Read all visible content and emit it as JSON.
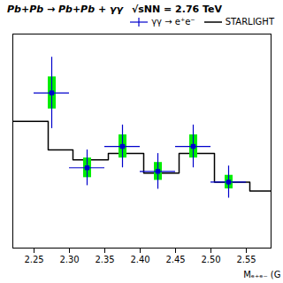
{
  "chart_data": {
    "type": "histogram",
    "title": "Pb+Pb → Pb+Pb + γγ",
    "subtitle": "√sNN = 2.76 TeV",
    "x_label": "Mₑ₊ₑ₋ (G",
    "xlim": [
      2.22,
      2.585
    ],
    "ylim": [
      -0.15,
      1.05
    ],
    "xticks": [
      2.25,
      {
        "value": 2.3,
        "label": "2.30"
      },
      2.35,
      {
        "value": 2.4,
        "label": "2.40"
      },
      2.45,
      {
        "value": 2.5,
        "label": "2.50"
      },
      2.55
    ],
    "yticks": [],
    "tick_labels": "x",
    "grid": false,
    "legend": "upper right",
    "series": [
      {
        "name": "γγ → e⁺e⁻",
        "type": "errorbar",
        "color": "#0000cc",
        "marker": "square",
        "x": [
          2.275,
          2.325,
          2.375,
          2.425,
          2.475,
          2.525
        ],
        "values": [
          0.72,
          0.3,
          0.42,
          0.28,
          0.42,
          0.22
        ],
        "xerr": [
          0.025,
          0.025,
          0.025,
          0.025,
          0.025,
          0.025
        ],
        "yerr_stat": [
          0.2,
          0.1,
          0.12,
          0.1,
          0.12,
          0.09
        ],
        "yerr_syst_lo": [
          0.09,
          0.055,
          0.065,
          0.05,
          0.065,
          0.038
        ],
        "yerr_syst_hi": [
          0.09,
          0.055,
          0.065,
          0.05,
          0.065,
          0.038
        ],
        "syst_color": "#00ee00"
      },
      {
        "name": "STARLIGHT",
        "type": "histogram",
        "color": "#000000",
        "bins": [
          2.22,
          2.27,
          2.305,
          2.355,
          2.405,
          2.455,
          2.505,
          2.555,
          2.585
        ],
        "values": [
          0.56,
          0.4,
          0.345,
          0.38,
          0.27,
          0.38,
          0.22,
          0.17
        ]
      }
    ]
  }
}
